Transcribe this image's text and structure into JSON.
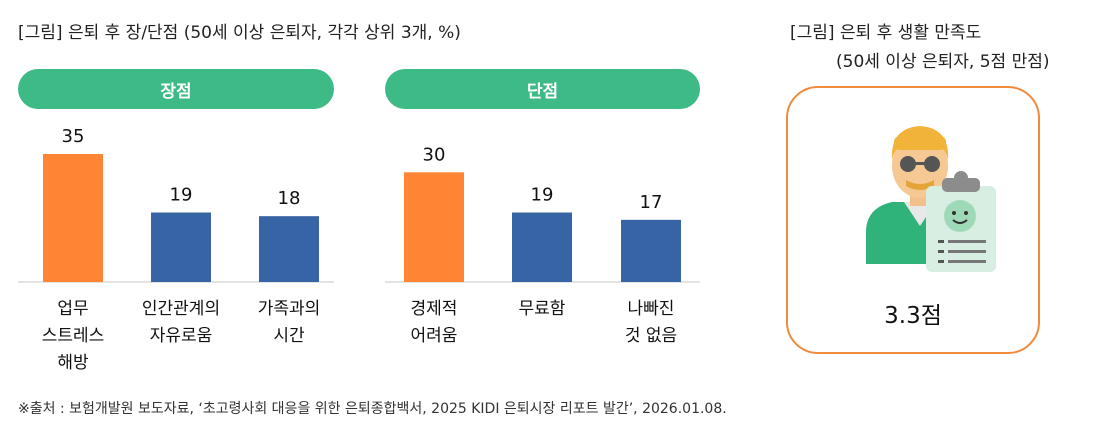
{
  "left_title": "[그림] 은퇴 후 장/단점 (50세 이상 은퇴자, 각각 상위 3개, %)",
  "right_title_line1": "[그림] 은퇴 후 생활 만족도",
  "right_title_line2": "(50세 이상 은퇴자, 5점 만점)",
  "footnote": "※출처 : 보험개발원 보도자료, ‘초고령사회 대응을 위한 은퇴종합백서, 2025 KIDI 은퇴시장 리포트 발간’, 2026.01.08.",
  "satisfaction": {
    "value_label": "3.3점",
    "icon": "person-with-smiley-clipboard-icon"
  },
  "colors": {
    "highlight": "#fe8534",
    "bar": "#3764a4",
    "pill": "#3dba86",
    "card_border": "#f08a3c"
  },
  "chart_data": [
    {
      "type": "bar",
      "title": "장점",
      "categories": [
        [
          "업무",
          "스트레스",
          "해방"
        ],
        [
          "인간관계의",
          "자유로움"
        ],
        [
          "가족과의",
          "시간"
        ]
      ],
      "values": [
        35,
        19,
        18
      ],
      "ylim": [
        0,
        40
      ],
      "highlight_index": 0
    },
    {
      "type": "bar",
      "title": "단점",
      "categories": [
        [
          "경제적",
          "어려움"
        ],
        [
          "무료함"
        ],
        [
          "나빠진",
          "것 없음"
        ]
      ],
      "values": [
        30,
        19,
        17
      ],
      "ylim": [
        0,
        40
      ],
      "highlight_index": 0
    }
  ]
}
